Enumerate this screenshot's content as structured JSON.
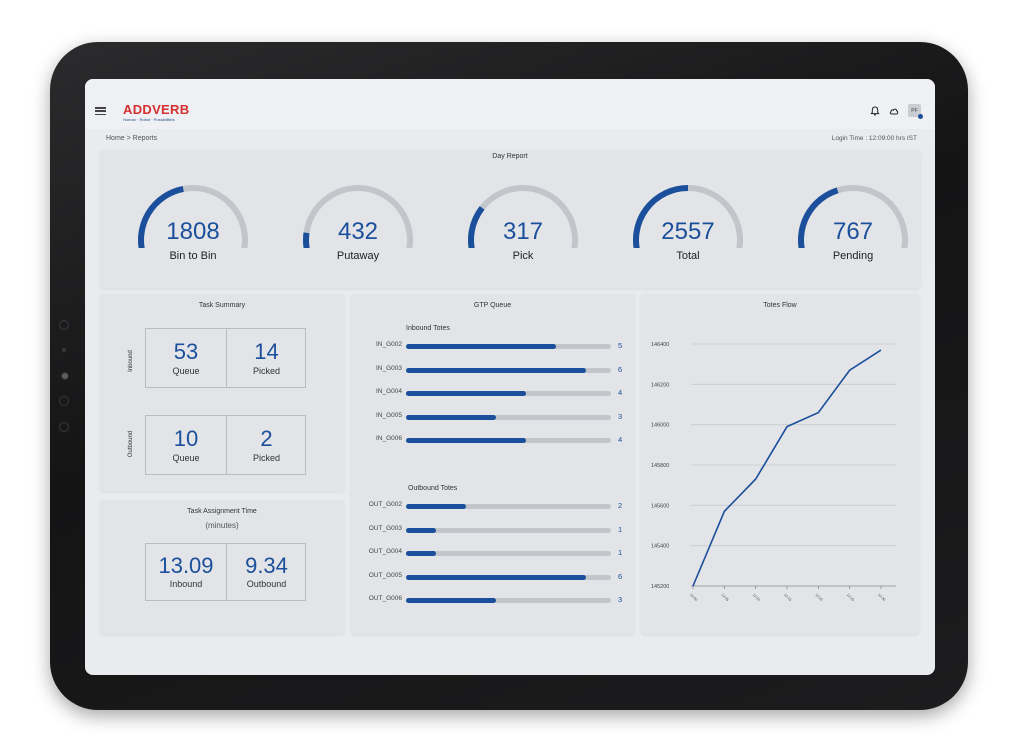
{
  "header": {
    "brand": "ADDVERB",
    "tagline": "Human · Robot · Possibilities",
    "avatar_initials": "PF",
    "icons": [
      "menu-icon",
      "bell-icon",
      "cloud-icon"
    ]
  },
  "breadcrumb": "Home > Reports",
  "login_time": "Login Time : 12:09:00 hrs IST",
  "colors": {
    "accent": "#1b4f9c",
    "brand_red": "#d32f2f",
    "track": "#c2c5ca"
  },
  "day_report": {
    "title": "Day Report",
    "gauges": [
      {
        "value": "1808",
        "label": "Bin to Bin",
        "fill": 0.45
      },
      {
        "value": "432",
        "label": "Putaway",
        "fill": 0.12
      },
      {
        "value": "317",
        "label": "Pick",
        "fill": 0.26
      },
      {
        "value": "2557",
        "label": "Total",
        "fill": 0.5
      },
      {
        "value": "767",
        "label": "Pending",
        "fill": 0.42
      }
    ]
  },
  "task_summary": {
    "title": "Task Summary",
    "inbound": {
      "side_label": "Inbound",
      "queue": "53",
      "queue_label": "Queue",
      "picked": "14",
      "picked_label": "Picked"
    },
    "outbound": {
      "side_label": "Outbound",
      "queue": "10",
      "queue_label": "Queue",
      "picked": "2",
      "picked_label": "Picked"
    }
  },
  "task_assignment": {
    "title": "Task Assignment Time",
    "subtitle": "(minutes)",
    "inbound": {
      "value": "13.09",
      "label": "Inbound"
    },
    "outbound": {
      "value": "9.34",
      "label": "Outbound"
    }
  },
  "gtp_queue": {
    "title": "GTP Queue",
    "max": 6,
    "inbound_title": "Inbound Totes",
    "inbound": [
      {
        "name": "IN_G002",
        "value": 5
      },
      {
        "name": "IN_G003",
        "value": 6
      },
      {
        "name": "IN_G004",
        "value": 4
      },
      {
        "name": "IN_G005",
        "value": 3
      },
      {
        "name": "IN_G006",
        "value": 4
      }
    ],
    "outbound_title": "Outbound Totes",
    "outbound": [
      {
        "name": "OUT_G002",
        "value": 2
      },
      {
        "name": "OUT_G003",
        "value": 1
      },
      {
        "name": "OUT_G004",
        "value": 1
      },
      {
        "name": "OUT_G005",
        "value": 6
      },
      {
        "name": "OUT_G006",
        "value": 3
      }
    ]
  },
  "chart_data": {
    "type": "line",
    "title": "Totes Flow",
    "xlabel": "",
    "ylabel": "",
    "y_ticks": [
      "146400",
      "146200",
      "146000",
      "145800",
      "145600",
      "145400",
      "145200"
    ],
    "ylim": [
      145200,
      146400
    ],
    "x_ticks": [
      "12:00",
      "12:05",
      "12:10",
      "12:15",
      "12:20",
      "12:25",
      "12:30"
    ],
    "series": [
      {
        "values": [
          145200,
          145570,
          145730,
          145990,
          146060,
          146270,
          146370
        ]
      }
    ],
    "grid": true
  }
}
